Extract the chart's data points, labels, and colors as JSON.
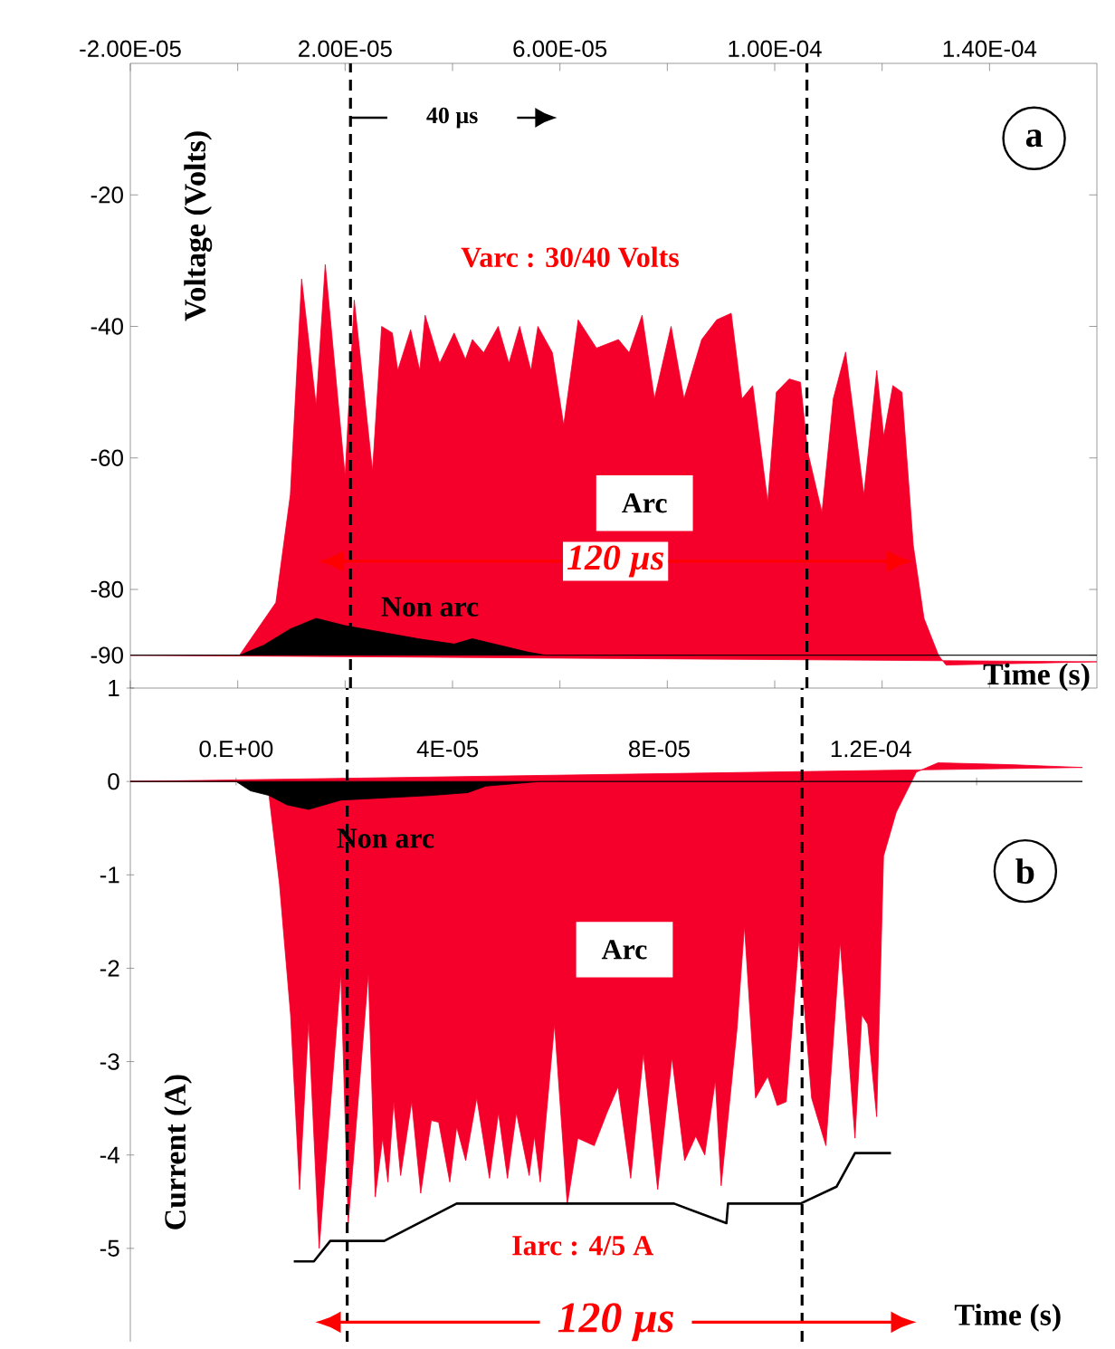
{
  "chart_data": [
    {
      "type": "area",
      "xlabel": "Time (s)",
      "ylabel": "Voltage (Volts)",
      "xlim": [
        -2e-05,
        0.00016
      ],
      "ylim": [
        -95,
        0
      ],
      "xticks": [
        {
          "value": -2e-05,
          "label": "-2.00E-05"
        },
        {
          "value": 0,
          "label": null
        },
        {
          "value": 2e-05,
          "label": "2.00E-05"
        },
        {
          "value": 4e-05,
          "label": null
        },
        {
          "value": 6e-05,
          "label": "6.00E-05"
        },
        {
          "value": 8e-05,
          "label": null
        },
        {
          "value": 0.0001,
          "label": "1.00E-04"
        },
        {
          "value": 0.00012,
          "label": null
        },
        {
          "value": 0.00014,
          "label": "1.40E-04"
        }
      ],
      "yticks": [
        -20,
        -40,
        -60,
        -80,
        -90
      ],
      "series": [
        {
          "color": "#f5002a",
          "x": [
            -2e-05,
            3.4e-07,
            7.1e-06,
            9.8e-06,
            1.19e-05,
            1.46e-05,
            1.63e-05,
            2e-05,
            2.17e-05,
            2.51e-05,
            2.68e-05,
            2.88e-05,
            2.98e-05,
            3.22e-05,
            3.39e-05,
            3.49e-05,
            3.76e-05,
            4.03e-05,
            4.24e-05,
            4.37e-05,
            4.58e-05,
            4.85e-05,
            5.05e-05,
            5.25e-05,
            5.46e-05,
            5.59e-05,
            5.86e-05,
            6.07e-05,
            6.34e-05,
            6.68e-05,
            7.09e-05,
            7.29e-05,
            7.53e-05,
            7.76e-05,
            8.07e-05,
            8.31e-05,
            8.64e-05,
            8.92e-05,
            9.19e-05,
            9.39e-05,
            9.59e-05,
            9.87e-05,
            0.0001003,
            0.0001027,
            0.0001048,
            0.0001061,
            0.0001088,
            0.0001109,
            0.0001132,
            0.0001166,
            0.000119,
            0.0001203,
            0.000122,
            0.0001237,
            0.0001258,
            0.0001278,
            0.0001305,
            0.0001319,
            0.00016
          ],
          "values": [
            -90,
            -90,
            -82,
            -65.6,
            -32.8,
            -52,
            -30.6,
            -62.8,
            -36,
            -62,
            -40,
            -41,
            -46.7,
            -40.5,
            -46.7,
            -38.3,
            -45.6,
            -41,
            -45,
            -42,
            -44,
            -40,
            -45.6,
            -40,
            -46.7,
            -40,
            -44,
            -55,
            -39,
            -43.3,
            -42,
            -44,
            -38.3,
            -51,
            -40,
            -51,
            -42,
            -39,
            -38,
            -51,
            -49,
            -66.7,
            -50,
            -48,
            -48.5,
            -58.9,
            -68.3,
            -51,
            -43.9,
            -65.6,
            -46.7,
            -56.7,
            -49,
            -50,
            -73.3,
            -84.4,
            -90,
            -91.5,
            -91
          ]
        },
        {
          "color": "#000000",
          "x": [
            -2e-05,
            3.4e-07,
            4.8e-06,
            9.8e-06,
            1.46e-05,
            2e-05,
            2.68e-05,
            3.36e-05,
            4.03e-05,
            4.37e-05,
            5.39e-05,
            5.73e-05,
            0.00016
          ],
          "values": [
            -90,
            -90,
            -88.5,
            -86,
            -84.4,
            -85.5,
            -86.5,
            -87.5,
            -88.3,
            -87.5,
            -89.5,
            -90,
            -90
          ]
        }
      ],
      "ref_lines": [
        {
          "axis": "x",
          "value": 2.1e-05,
          "color": "#000000",
          "line_style": "dashed"
        },
        {
          "axis": "x",
          "value": 0.000106,
          "color": "#000000",
          "line_style": "dashed"
        }
      ],
      "annotations": [
        "40 µs",
        "Varc : 30/40 Volts",
        "Arc",
        "120 µs",
        "Non arc",
        "a"
      ]
    },
    {
      "type": "area",
      "xlabel": "Time (s)",
      "ylabel": "Current (A)",
      "xlim": [
        -2e-05,
        0.00016
      ],
      "ylim": [
        -6,
        1
      ],
      "xticks": [
        {
          "value": 0,
          "label": "0.E+00"
        },
        {
          "value": 2e-05,
          "label": null
        },
        {
          "value": 4e-05,
          "label": "4E-05"
        },
        {
          "value": 6e-05,
          "label": null
        },
        {
          "value": 8e-05,
          "label": "8E-05"
        },
        {
          "value": 0.0001,
          "label": null
        },
        {
          "value": 0.00012,
          "label": "1.2E-04"
        },
        {
          "value": 0.00014,
          "label": null
        }
      ],
      "yticks": [
        1,
        0,
        -1,
        -2,
        -3,
        -4,
        -5
      ],
      "series": [
        {
          "color": "#f5002a",
          "x": [
            -2e-05,
            0,
            6.2e-06,
            8.2e-06,
            1.03e-05,
            1.2e-05,
            1.37e-05,
            1.57e-05,
            1.98e-05,
            2.12e-05,
            2.5e-05,
            2.63e-05,
            2.77e-05,
            2.87e-05,
            2.98e-05,
            3.11e-05,
            3.32e-05,
            3.49e-05,
            3.69e-05,
            3.83e-05,
            4.04e-05,
            4.17e-05,
            4.34e-05,
            4.55e-05,
            4.79e-05,
            4.96e-05,
            5.13e-05,
            5.3e-05,
            5.54e-05,
            5.64e-05,
            5.75e-05,
            6.02e-05,
            6.26e-05,
            6.46e-05,
            6.77e-05,
            7.01e-05,
            7.22e-05,
            7.46e-05,
            7.7e-05,
            7.97e-05,
            8.24e-05,
            8.48e-05,
            8.69e-05,
            8.86e-05,
            9.06e-05,
            9.17e-05,
            9.47e-05,
            9.61e-05,
            9.82e-05,
            0.0001005,
            0.0001023,
            0.000104,
            0.0001064,
            0.0001088,
            0.0001115,
            0.0001142,
            0.000117,
            0.0001183,
            0.0001194,
            0.0001211,
            0.0001224,
            0.0001248,
            0.0001286,
            0.0001327,
            0.0001464,
            0.00016
          ],
          "values": [
            0,
            0,
            -0.14,
            -1.1,
            -2.5,
            -4.37,
            -2.57,
            -5.0,
            -2.06,
            -4.73,
            -2.06,
            -4.45,
            -3.82,
            -4.29,
            -3.43,
            -4.22,
            -3.43,
            -4.41,
            -3.63,
            -3.65,
            -4.29,
            -3.7,
            -4.06,
            -3.39,
            -4.25,
            -3.55,
            -4.25,
            -3.55,
            -4.22,
            -3.8,
            -4.29,
            -2.6,
            -4.53,
            -3.82,
            -3.9,
            -3.55,
            -3.27,
            -4.25,
            -2.92,
            -4.37,
            -2.96,
            -4.06,
            -3.8,
            -4.0,
            -3.2,
            -4.33,
            -2.65,
            -1.55,
            -3.39,
            -3.16,
            -3.47,
            -3.43,
            -1.7,
            -3.39,
            -3.9,
            -1.72,
            -3.82,
            -2.5,
            -2.6,
            -3.59,
            -0.8,
            -0.33,
            0.1,
            0.2,
            0.18,
            0.15
          ]
        },
        {
          "color": "#000000",
          "x": [
            -2e-05,
            0,
            2.7e-06,
            6.2e-06,
            9.6e-06,
            1.37e-05,
            1.98e-05,
            2.67e-05,
            3.69e-05,
            4.38e-05,
            4.72e-05,
            5.75e-05,
            0.00016
          ],
          "values": [
            0,
            0,
            -0.1,
            -0.15,
            -0.25,
            -0.3,
            -0.2,
            -0.18,
            -0.15,
            -0.12,
            -0.05,
            0,
            0
          ]
        },
        {
          "type": "line",
          "color": "#000000",
          "x": [
            1.09e-05,
            1.47e-05,
            1.78e-05,
            2.8e-05,
            4.17e-05,
            8.28e-05,
            9.27e-05,
            9.3e-05,
            0.0001067,
            0.0001135,
            0.000117,
            0.0001238
          ],
          "values": [
            -5.14,
            -5.14,
            -4.92,
            -4.92,
            -4.52,
            -4.52,
            -4.73,
            -4.52,
            -4.52,
            -4.34,
            -3.98,
            -3.98
          ]
        }
      ],
      "ref_lines": [
        {
          "axis": "x",
          "value": 2.1e-05,
          "color": "#000000",
          "line_style": "dashed"
        },
        {
          "axis": "x",
          "value": 0.000107,
          "color": "#000000",
          "line_style": "dashed"
        }
      ],
      "annotations": [
        "Non arc",
        "b",
        "Arc",
        "Iarc : 4/5 A",
        "120 µs"
      ]
    }
  ]
}
